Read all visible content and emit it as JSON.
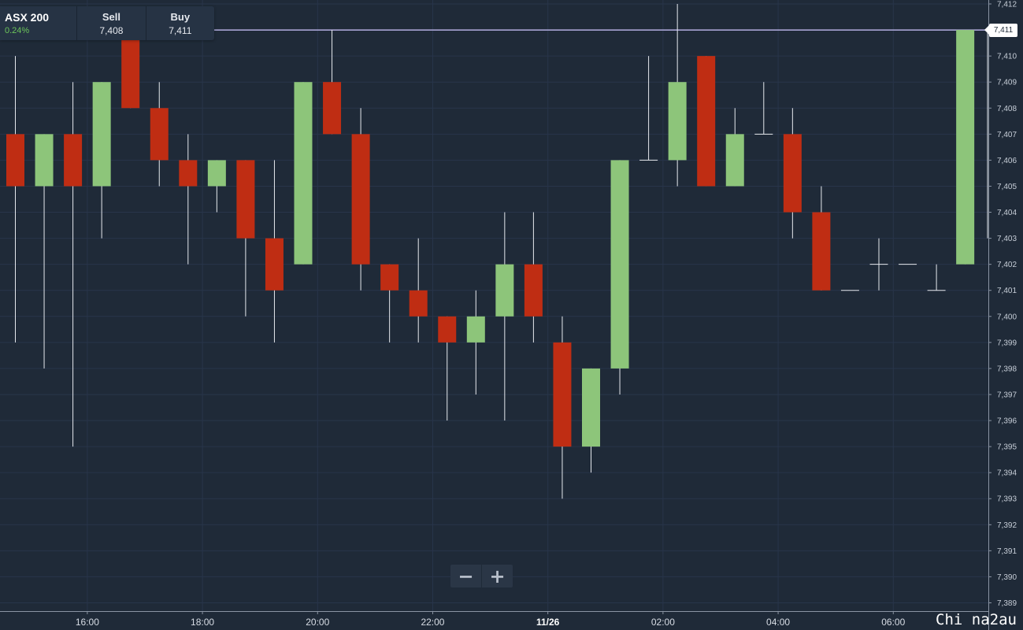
{
  "header": {
    "instrument": "ASX 200",
    "change": "0.24%",
    "sell_label": "Sell",
    "sell_value": "7,408",
    "buy_label": "Buy",
    "buy_value": "7,411"
  },
  "zoom": {
    "minus": "−",
    "plus": "+"
  },
  "current_price_label": "7,411",
  "watermark": "Chi na2au",
  "colors": {
    "background": "#1f2a38",
    "up": "#8dc57a",
    "down": "#bf2d13",
    "price_line": "#b3aee0"
  },
  "chart_data": {
    "type": "candlestick",
    "ylim": [
      7389,
      7412
    ],
    "y_ticks": [
      "7,389",
      "7,390",
      "7,391",
      "7,392",
      "7,393",
      "7,394",
      "7,395",
      "7,396",
      "7,397",
      "7,398",
      "7,399",
      "7,400",
      "7,401",
      "7,402",
      "7,403",
      "7,404",
      "7,405",
      "7,406",
      "7,407",
      "7,408",
      "7,409",
      "7,410",
      "7,411",
      "7,412"
    ],
    "x_ticks": [
      {
        "label": "16:00",
        "slot": 2.5,
        "bold": false
      },
      {
        "label": "18:00",
        "slot": 6.5,
        "bold": false
      },
      {
        "label": "20:00",
        "slot": 10.5,
        "bold": false
      },
      {
        "label": "22:00",
        "slot": 14.5,
        "bold": false
      },
      {
        "label": "11/26",
        "slot": 18.5,
        "bold": true
      },
      {
        "label": "02:00",
        "slot": 22.5,
        "bold": false
      },
      {
        "label": "04:00",
        "slot": 26.5,
        "bold": false
      },
      {
        "label": "06:00",
        "slot": 30.5,
        "bold": false
      }
    ],
    "current_price": 7411,
    "candles": [
      {
        "o": 7407,
        "h": 7410,
        "l": 7399,
        "c": 7405
      },
      {
        "o": 7405,
        "h": 7407,
        "l": 7398,
        "c": 7407
      },
      {
        "o": 7407,
        "h": 7409,
        "l": 7395,
        "c": 7405
      },
      {
        "o": 7405,
        "h": 7409,
        "l": 7403,
        "c": 7409
      },
      {
        "o": 7411,
        "h": 7411,
        "l": 7408,
        "c": 7408
      },
      {
        "o": 7408,
        "h": 7409,
        "l": 7405,
        "c": 7406
      },
      {
        "o": 7406,
        "h": 7407,
        "l": 7402,
        "c": 7405
      },
      {
        "o": 7405,
        "h": 7406,
        "l": 7404,
        "c": 7406
      },
      {
        "o": 7406,
        "h": 7406,
        "l": 7400,
        "c": 7403
      },
      {
        "o": 7403,
        "h": 7406,
        "l": 7399,
        "c": 7401
      },
      {
        "o": 7402,
        "h": 7409,
        "l": 7402,
        "c": 7409
      },
      {
        "o": 7409,
        "h": 7411,
        "l": 7407,
        "c": 7407
      },
      {
        "o": 7407,
        "h": 7408,
        "l": 7401,
        "c": 7402
      },
      {
        "o": 7402,
        "h": 7402,
        "l": 7399,
        "c": 7401
      },
      {
        "o": 7401,
        "h": 7403,
        "l": 7399,
        "c": 7400
      },
      {
        "o": 7400,
        "h": 7400,
        "l": 7396,
        "c": 7399
      },
      {
        "o": 7399,
        "h": 7401,
        "l": 7397,
        "c": 7400
      },
      {
        "o": 7400,
        "h": 7404,
        "l": 7396,
        "c": 7402
      },
      {
        "o": 7402,
        "h": 7404,
        "l": 7399,
        "c": 7400
      },
      {
        "o": 7399,
        "h": 7400,
        "l": 7393,
        "c": 7395
      },
      {
        "o": 7395,
        "h": 7398,
        "l": 7394,
        "c": 7398
      },
      {
        "o": 7398,
        "h": 7406,
        "l": 7397,
        "c": 7406
      },
      {
        "o": 7406,
        "h": 7410,
        "l": 7406,
        "c": 7406
      },
      {
        "o": 7406,
        "h": 7412,
        "l": 7405,
        "c": 7409
      },
      {
        "o": 7410,
        "h": 7410,
        "l": 7405,
        "c": 7405
      },
      {
        "o": 7405,
        "h": 7408,
        "l": 7405,
        "c": 7407
      },
      {
        "o": 7407,
        "h": 7409,
        "l": 7407,
        "c": 7407
      },
      {
        "o": 7407,
        "h": 7408,
        "l": 7403,
        "c": 7404
      },
      {
        "o": 7404,
        "h": 7405,
        "l": 7401,
        "c": 7401
      },
      {
        "o": 7401,
        "h": 7401,
        "l": 7401,
        "c": 7401
      },
      {
        "o": 7402,
        "h": 7403,
        "l": 7401,
        "c": 7402
      },
      {
        "o": 7402,
        "h": 7402,
        "l": 7402,
        "c": 7402
      },
      {
        "o": 7401,
        "h": 7402,
        "l": 7401,
        "c": 7401
      },
      {
        "o": 7402,
        "h": 7411,
        "l": 7402,
        "c": 7411
      }
    ]
  }
}
